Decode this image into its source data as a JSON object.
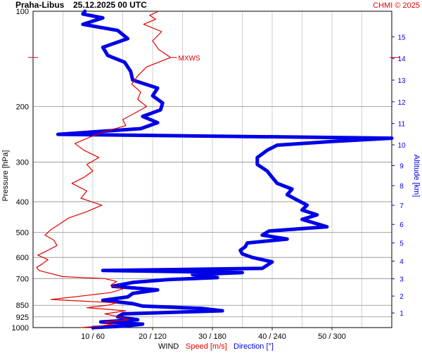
{
  "header": {
    "station": "Praha-Libus",
    "datetime": "25.12.2025 00 UTC",
    "credit": "CHMI © 2025"
  },
  "colors": {
    "speed": "#e00000",
    "direction": "#0000e6",
    "grid": "#b0b0b0",
    "pressure_grid": "#8c8c8c",
    "text": "#000000"
  },
  "chart_data": {
    "type": "line",
    "title": "Praha-Libus   25.12.2025 00 UTC",
    "ylabel": "Pressure [hPa]",
    "y2label": "Altitude [km]",
    "xlabel": {
      "prefix": "WIND",
      "speed": "Speed [m/s]",
      "direction": "Direction [°]"
    },
    "pressure_ticks": [
      100,
      200,
      300,
      400,
      500,
      600,
      700,
      850,
      925,
      1000
    ],
    "altitude_ticks": [
      1,
      2,
      3,
      4,
      5,
      6,
      7,
      8,
      9,
      10,
      11,
      12,
      13,
      14,
      15
    ],
    "x_ticks": [
      "10 / 60",
      "20 / 120",
      "30 / 180",
      "40 / 240",
      "50 / 300"
    ],
    "speed_range_ms": [
      0,
      60
    ],
    "direction_range_deg": [
      0,
      360
    ],
    "annotation": {
      "text": "MXWS",
      "pressure_hPa": 140
    },
    "series": [
      {
        "name": "Speed [m/s]",
        "unit": "m/s",
        "points": [
          [
            1000,
            8.0
          ],
          [
            990,
            11.0
          ],
          [
            975,
            13.5
          ],
          [
            960,
            12.0
          ],
          [
            945,
            16.0
          ],
          [
            925,
            14.5
          ],
          [
            905,
            12.0
          ],
          [
            885,
            15.5
          ],
          [
            865,
            9.0
          ],
          [
            850,
            12.5
          ],
          [
            835,
            14.0
          ],
          [
            815,
            3.0
          ],
          [
            795,
            8.0
          ],
          [
            775,
            13.0
          ],
          [
            755,
            15.0
          ],
          [
            735,
            13.0
          ],
          [
            715,
            14.0
          ],
          [
            700,
            12.0
          ],
          [
            690,
            5.0
          ],
          [
            675,
            3.0
          ],
          [
            660,
            1.0
          ],
          [
            645,
            0.6
          ],
          [
            630,
            1.5
          ],
          [
            610,
            2.5
          ],
          [
            590,
            0.8
          ],
          [
            570,
            2.5
          ],
          [
            550,
            4.0
          ],
          [
            530,
            3.5
          ],
          [
            510,
            2.0
          ],
          [
            490,
            3.0
          ],
          [
            470,
            4.5
          ],
          [
            450,
            6.0
          ],
          [
            430,
            9.0
          ],
          [
            410,
            11.5
          ],
          [
            390,
            8.0
          ],
          [
            370,
            9.0
          ],
          [
            350,
            6.5
          ],
          [
            335,
            8.5
          ],
          [
            320,
            10.0
          ],
          [
            305,
            9.0
          ],
          [
            290,
            11.0
          ],
          [
            275,
            8.5
          ],
          [
            262,
            7.0
          ],
          [
            250,
            9.5
          ],
          [
            240,
            12.0
          ],
          [
            230,
            15.5
          ],
          [
            220,
            15.0
          ],
          [
            210,
            17.0
          ],
          [
            200,
            19.0
          ],
          [
            190,
            17.5
          ],
          [
            180,
            18.0
          ],
          [
            170,
            16.5
          ],
          [
            160,
            17.5
          ],
          [
            150,
            19.0
          ],
          [
            140,
            23.0
          ],
          [
            132,
            21.0
          ],
          [
            124,
            20.0
          ],
          [
            116,
            21.5
          ],
          [
            110,
            18.5
          ],
          [
            106,
            20.5
          ],
          [
            103,
            19.5
          ],
          [
            100,
            21.0
          ]
        ]
      },
      {
        "name": "Direction [°]",
        "unit": "deg",
        "points": [
          [
            1000,
            60
          ],
          [
            990,
            90
          ],
          [
            975,
            110
          ],
          [
            960,
            68
          ],
          [
            945,
            105
          ],
          [
            925,
            85
          ],
          [
            905,
            90
          ],
          [
            885,
            190
          ],
          [
            870,
            170
          ],
          [
            855,
            110
          ],
          [
            840,
            100
          ],
          [
            820,
            70
          ],
          [
            800,
            95
          ],
          [
            780,
            100
          ],
          [
            760,
            125
          ],
          [
            740,
            80
          ],
          [
            720,
            100
          ],
          [
            705,
            135
          ],
          [
            695,
            185
          ],
          [
            680,
            160
          ],
          [
            670,
            210
          ],
          [
            660,
            70
          ],
          [
            650,
            230
          ],
          [
            635,
            235
          ],
          [
            620,
            240
          ],
          [
            600,
            220
          ],
          [
            585,
            210
          ],
          [
            570,
            208
          ],
          [
            555,
            213
          ],
          [
            540,
            215
          ],
          [
            525,
            255
          ],
          [
            510,
            230
          ],
          [
            495,
            237
          ],
          [
            480,
            295
          ],
          [
            470,
            285
          ],
          [
            455,
            270
          ],
          [
            440,
            285
          ],
          [
            425,
            270
          ],
          [
            410,
            275
          ],
          [
            395,
            265
          ],
          [
            380,
            255
          ],
          [
            365,
            260
          ],
          [
            350,
            245
          ],
          [
            335,
            240
          ],
          [
            320,
            235
          ],
          [
            305,
            225
          ],
          [
            290,
            225
          ],
          [
            275,
            235
          ],
          [
            265,
            245
          ],
          [
            258,
            300
          ],
          [
            252,
            360
          ],
          [
            245,
            25
          ],
          [
            235,
            108
          ],
          [
            225,
            125
          ],
          [
            215,
            110
          ],
          [
            205,
            128
          ],
          [
            195,
            130
          ],
          [
            185,
            120
          ],
          [
            175,
            125
          ],
          [
            165,
            100
          ],
          [
            155,
            98
          ],
          [
            145,
            92
          ],
          [
            138,
            75
          ],
          [
            130,
            70
          ],
          [
            122,
            95
          ],
          [
            115,
            85
          ],
          [
            110,
            50
          ],
          [
            105,
            70
          ],
          [
            102,
            50
          ],
          [
            100,
            52
          ]
        ]
      }
    ]
  }
}
